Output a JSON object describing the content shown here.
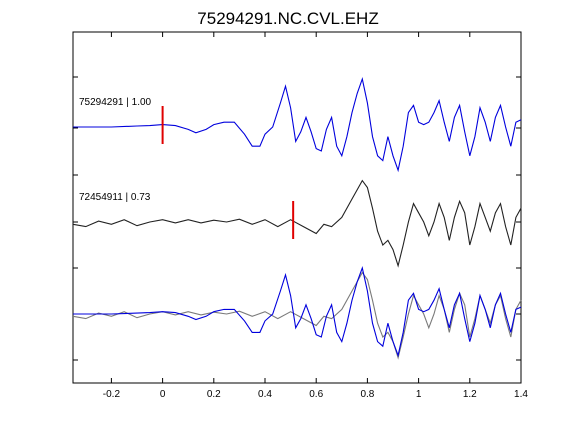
{
  "chart_data": {
    "type": "line",
    "title": "75294291.NC.CVL.EHZ",
    "xlabel": "",
    "ylabel": "",
    "xlim": [
      -0.35,
      1.4
    ],
    "xticks": [
      -0.2,
      0,
      0.2,
      0.4,
      0.6,
      0.8,
      1,
      1.2,
      1.4
    ],
    "xtick_labels": [
      "-0.2",
      "0",
      "0.2",
      "0.4",
      "0.6",
      "0.8",
      "1",
      "1.2",
      "1.4"
    ],
    "grid": false,
    "panels": [
      {
        "label": "75294291 | 1.00",
        "pick_time": 0.0,
        "pick_color": "#e00000",
        "traces": [
          {
            "color": "#0000dd",
            "x": [
              -0.35,
              -0.2,
              -0.1,
              -0.05,
              0.0,
              0.05,
              0.1,
              0.13,
              0.17,
              0.2,
              0.24,
              0.28,
              0.32,
              0.35,
              0.38,
              0.4,
              0.43,
              0.46,
              0.48,
              0.5,
              0.52,
              0.54,
              0.56,
              0.58,
              0.6,
              0.62,
              0.64,
              0.66,
              0.68,
              0.7,
              0.72,
              0.74,
              0.76,
              0.78,
              0.8,
              0.82,
              0.84,
              0.86,
              0.88,
              0.9,
              0.92,
              0.94,
              0.96,
              0.98,
              1.0,
              1.02,
              1.04,
              1.06,
              1.08,
              1.1,
              1.12,
              1.14,
              1.16,
              1.18,
              1.2,
              1.22,
              1.24,
              1.26,
              1.28,
              1.3,
              1.32,
              1.34,
              1.36,
              1.38,
              1.4
            ],
            "y": [
              0.0,
              0.0,
              0.02,
              0.03,
              0.05,
              0.03,
              -0.05,
              -0.12,
              -0.05,
              0.05,
              0.1,
              0.1,
              -0.15,
              -0.4,
              -0.4,
              -0.15,
              0.0,
              0.5,
              0.85,
              0.4,
              -0.3,
              -0.1,
              0.2,
              -0.1,
              -0.45,
              -0.5,
              -0.05,
              0.2,
              -0.4,
              -0.6,
              -0.2,
              0.3,
              0.7,
              1.0,
              0.5,
              -0.2,
              -0.6,
              -0.7,
              -0.2,
              -0.6,
              -0.9,
              -0.4,
              0.3,
              0.45,
              0.1,
              0.05,
              0.1,
              0.3,
              0.55,
              0.1,
              -0.3,
              0.2,
              0.45,
              -0.1,
              -0.6,
              -0.2,
              0.4,
              0.1,
              -0.3,
              0.2,
              0.45,
              0.0,
              -0.4,
              0.1,
              0.15
            ]
          }
        ]
      },
      {
        "label": "72454911 | 0.73",
        "pick_time": 0.51,
        "pick_color": "#e00000",
        "traces": [
          {
            "color": "#222222",
            "x": [
              -0.35,
              -0.3,
              -0.25,
              -0.2,
              -0.15,
              -0.1,
              -0.05,
              0.0,
              0.05,
              0.1,
              0.15,
              0.2,
              0.25,
              0.3,
              0.35,
              0.4,
              0.45,
              0.5,
              0.55,
              0.6,
              0.63,
              0.66,
              0.7,
              0.74,
              0.78,
              0.8,
              0.82,
              0.84,
              0.86,
              0.88,
              0.9,
              0.92,
              0.94,
              0.96,
              0.98,
              1.0,
              1.02,
              1.04,
              1.06,
              1.08,
              1.1,
              1.12,
              1.14,
              1.16,
              1.18,
              1.2,
              1.22,
              1.24,
              1.26,
              1.28,
              1.3,
              1.32,
              1.34,
              1.36,
              1.38,
              1.4
            ],
            "y": [
              -0.05,
              -0.1,
              0.02,
              -0.05,
              0.05,
              -0.08,
              0.0,
              0.05,
              -0.02,
              0.05,
              -0.02,
              0.04,
              0.0,
              0.06,
              -0.05,
              0.05,
              -0.1,
              0.05,
              -0.1,
              -0.25,
              -0.05,
              -0.1,
              0.1,
              0.5,
              0.9,
              0.75,
              0.3,
              -0.2,
              -0.5,
              -0.4,
              -0.6,
              -0.95,
              -0.5,
              0.0,
              0.4,
              0.2,
              0.0,
              -0.3,
              0.0,
              0.4,
              0.1,
              -0.4,
              0.1,
              0.45,
              0.2,
              -0.5,
              -0.1,
              0.4,
              0.1,
              -0.2,
              0.2,
              0.4,
              -0.1,
              -0.5,
              0.1,
              0.3
            ]
          }
        ]
      },
      {
        "label": "",
        "traces": [
          {
            "color": "#7a7a7a",
            "x": [
              -0.35,
              -0.3,
              -0.25,
              -0.2,
              -0.15,
              -0.1,
              -0.05,
              0.0,
              0.05,
              0.1,
              0.15,
              0.2,
              0.25,
              0.3,
              0.35,
              0.4,
              0.45,
              0.5,
              0.55,
              0.6,
              0.63,
              0.66,
              0.7,
              0.74,
              0.78,
              0.8,
              0.82,
              0.84,
              0.86,
              0.88,
              0.9,
              0.92,
              0.94,
              0.96,
              0.98,
              1.0,
              1.02,
              1.04,
              1.06,
              1.08,
              1.1,
              1.12,
              1.14,
              1.16,
              1.18,
              1.2,
              1.22,
              1.24,
              1.26,
              1.28,
              1.3,
              1.32,
              1.34,
              1.36,
              1.38,
              1.4
            ],
            "y": [
              -0.05,
              -0.1,
              0.02,
              -0.05,
              0.05,
              -0.08,
              0.0,
              0.05,
              -0.02,
              0.05,
              -0.02,
              0.04,
              0.0,
              0.06,
              -0.05,
              0.05,
              -0.1,
              0.05,
              -0.1,
              -0.25,
              -0.05,
              -0.1,
              0.1,
              0.5,
              0.9,
              0.75,
              0.3,
              -0.2,
              -0.5,
              -0.4,
              -0.6,
              -0.95,
              -0.5,
              0.0,
              0.4,
              0.2,
              0.0,
              -0.3,
              0.0,
              0.4,
              0.1,
              -0.4,
              0.1,
              0.45,
              0.2,
              -0.5,
              -0.1,
              0.4,
              0.1,
              -0.2,
              0.2,
              0.4,
              -0.1,
              -0.5,
              0.1,
              0.3
            ]
          },
          {
            "color": "#0000dd",
            "x": [
              -0.35,
              -0.2,
              -0.1,
              -0.05,
              0.0,
              0.05,
              0.1,
              0.13,
              0.17,
              0.2,
              0.24,
              0.28,
              0.32,
              0.35,
              0.38,
              0.4,
              0.43,
              0.46,
              0.48,
              0.5,
              0.52,
              0.54,
              0.56,
              0.58,
              0.6,
              0.62,
              0.64,
              0.66,
              0.68,
              0.7,
              0.72,
              0.74,
              0.76,
              0.78,
              0.8,
              0.82,
              0.84,
              0.86,
              0.88,
              0.9,
              0.92,
              0.94,
              0.96,
              0.98,
              1.0,
              1.02,
              1.04,
              1.06,
              1.08,
              1.1,
              1.12,
              1.14,
              1.16,
              1.18,
              1.2,
              1.22,
              1.24,
              1.26,
              1.28,
              1.3,
              1.32,
              1.34,
              1.36,
              1.38,
              1.4
            ],
            "y": [
              0.0,
              0.0,
              0.02,
              0.03,
              0.05,
              0.03,
              -0.05,
              -0.12,
              -0.05,
              0.05,
              0.1,
              0.1,
              -0.15,
              -0.4,
              -0.4,
              -0.15,
              0.0,
              0.5,
              0.85,
              0.4,
              -0.3,
              -0.1,
              0.2,
              -0.1,
              -0.45,
              -0.5,
              -0.05,
              0.2,
              -0.4,
              -0.6,
              -0.2,
              0.3,
              0.7,
              1.0,
              0.5,
              -0.2,
              -0.6,
              -0.7,
              -0.2,
              -0.6,
              -0.9,
              -0.4,
              0.3,
              0.45,
              0.1,
              0.05,
              0.1,
              0.3,
              0.55,
              0.1,
              -0.3,
              0.2,
              0.45,
              -0.1,
              -0.6,
              -0.2,
              0.4,
              0.1,
              -0.3,
              0.2,
              0.45,
              0.0,
              -0.4,
              0.1,
              0.15
            ]
          }
        ]
      }
    ]
  }
}
